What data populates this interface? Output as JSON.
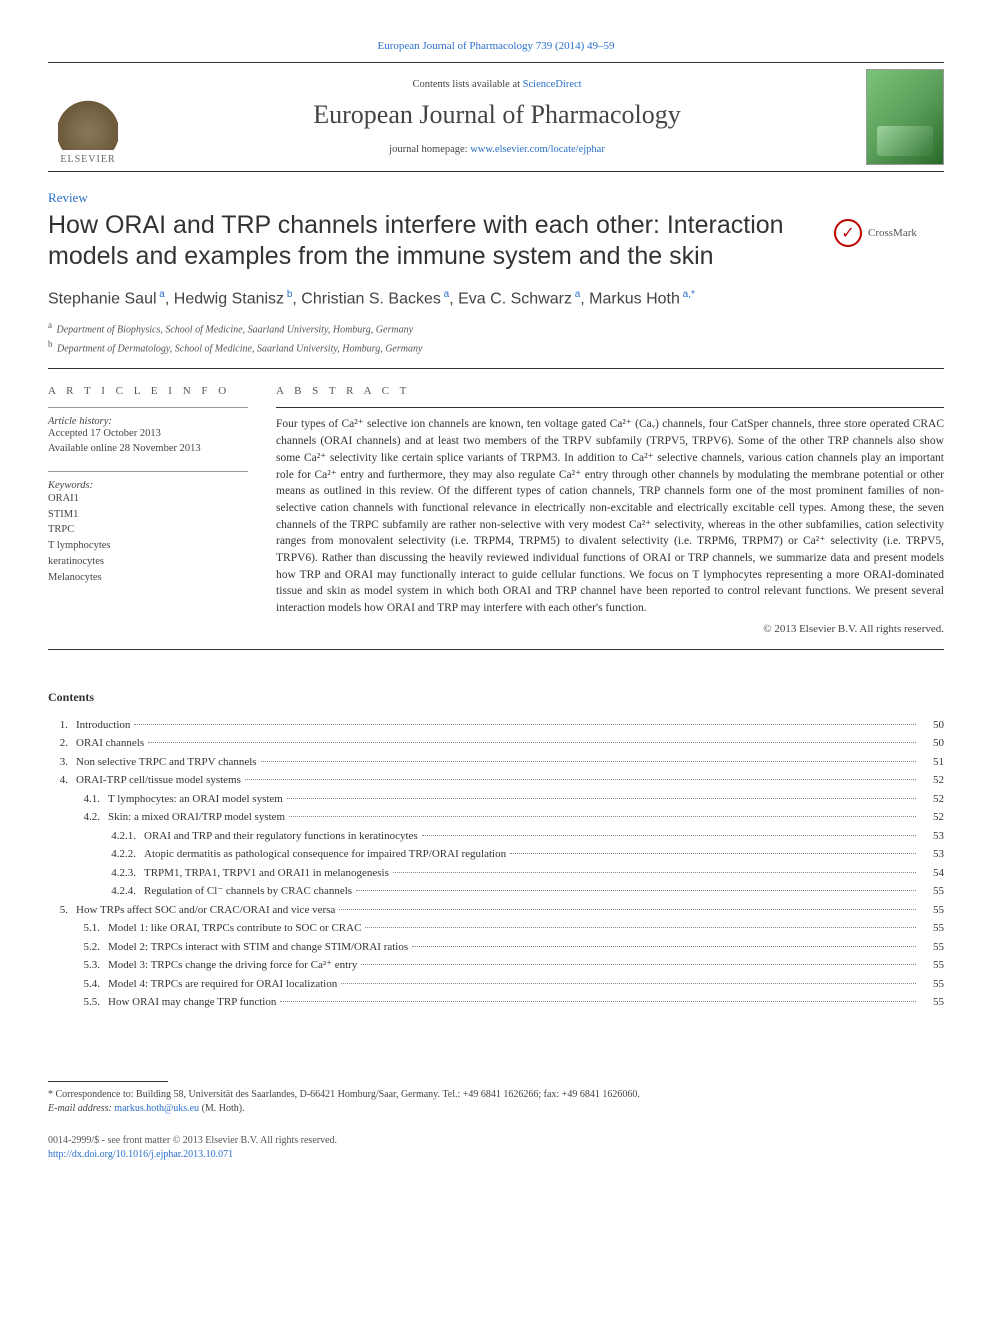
{
  "journal_header_link": "European Journal of Pharmacology 739 (2014) 49–59",
  "header": {
    "contents_prefix": "Contents lists available at ",
    "contents_link": "ScienceDirect",
    "journal_name": "European Journal of Pharmacology",
    "homepage_prefix": "journal homepage: ",
    "homepage_link": "www.elsevier.com/locate/ejphar",
    "publisher": "ELSEVIER"
  },
  "article_type": "Review",
  "title": "How ORAI and TRP channels interfere with each other: Interaction models and examples from the immune system and the skin",
  "crossmark": "CrossMark",
  "authors_html": "Stephanie Saul<sup> a</sup>, Hedwig Stanisz<sup> b</sup>, Christian S. Backes<sup> a</sup>, Eva C. Schwarz<sup> a</sup>, Markus Hoth<sup> a,*</sup>",
  "affiliations": [
    {
      "sup": "a",
      "text": "Department of Biophysics, School of Medicine, Saarland University, Homburg, Germany"
    },
    {
      "sup": "b",
      "text": "Department of Dermatology, School of Medicine, Saarland University, Homburg, Germany"
    }
  ],
  "article_info": {
    "section_label": "A R T I C L E  I N F O",
    "history_label": "Article history:",
    "history_lines": "Accepted 17 October 2013\nAvailable online 28 November 2013",
    "keywords_label": "Keywords:",
    "keywords": [
      "ORAI1",
      "STIM1",
      "TRPC",
      "T lymphocytes",
      "keratinocytes",
      "Melanocytes"
    ]
  },
  "abstract": {
    "section_label": "A B S T R A C T",
    "text": "Four types of Ca²⁺ selective ion channels are known, ten voltage gated Ca²⁺ (Caᵥ) channels, four CatSper channels, three store operated CRAC channels (ORAI channels) and at least two members of the TRPV subfamily (TRPV5, TRPV6). Some of the other TRP channels also show some Ca²⁺ selectivity like certain splice variants of TRPM3. In addition to Ca²⁺ selective channels, various cation channels play an important role for Ca²⁺ entry and furthermore, they may also regulate Ca²⁺ entry through other channels by modulating the membrane potential or other means as outlined in this review. Of the different types of cation channels, TRP channels form one of the most prominent families of non-selective cation channels with functional relevance in electrically non-excitable and electrically excitable cell types. Among these, the seven channels of the TRPC subfamily are rather non-selective with very modest Ca²⁺ selectivity, whereas in the other subfamilies, cation selectivity ranges from monovalent selectivity (i.e. TRPM4, TRPM5) to divalent selectivity (i.e. TRPM6, TRPM7) or Ca²⁺ selectivity (i.e. TRPV5, TRPV6). Rather than discussing the heavily reviewed individual functions of ORAI or TRP channels, we summarize data and present models how TRP and ORAI may functionally interact to guide cellular functions. We focus on T lymphocytes representing a more ORAI-dominated tissue and skin as model system in which both ORAI and TRP channel have been reported to control relevant functions. We present several interaction models how ORAI and TRP may interfere with each other's function.",
    "copyright": "© 2013 Elsevier B.V. All rights reserved."
  },
  "contents_heading": "Contents",
  "toc": [
    {
      "num": "1.",
      "title": "Introduction",
      "page": "50",
      "indent": 0
    },
    {
      "num": "2.",
      "title": "ORAI channels",
      "page": "50",
      "indent": 0
    },
    {
      "num": "3.",
      "title": "Non selective TRPC and TRPV channels",
      "page": "51",
      "indent": 0
    },
    {
      "num": "4.",
      "title": "ORAI-TRP cell/tissue model systems",
      "page": "52",
      "indent": 0
    },
    {
      "num": "4.1.",
      "title": "T lymphocytes: an ORAI model system",
      "page": "52",
      "indent": 1
    },
    {
      "num": "4.2.",
      "title": "Skin: a mixed ORAI/TRP model system",
      "page": "52",
      "indent": 1
    },
    {
      "num": "4.2.1.",
      "title": "ORAI and TRP and their regulatory functions in keratinocytes",
      "page": "53",
      "indent": 2
    },
    {
      "num": "4.2.2.",
      "title": "Atopic dermatitis as pathological consequence for impaired TRP/ORAI regulation",
      "page": "53",
      "indent": 2
    },
    {
      "num": "4.2.3.",
      "title": "TRPM1, TRPA1, TRPV1 and ORAI1 in melanogenesis",
      "page": "54",
      "indent": 2
    },
    {
      "num": "4.2.4.",
      "title": "Regulation of Cl⁻ channels by CRAC channels",
      "page": "55",
      "indent": 2
    },
    {
      "num": "5.",
      "title": "How TRPs affect SOC and/or CRAC/ORAI and vice versa",
      "page": "55",
      "indent": 0
    },
    {
      "num": "5.1.",
      "title": "Model 1: like ORAI, TRPCs contribute to SOC or CRAC",
      "page": "55",
      "indent": 1
    },
    {
      "num": "5.2.",
      "title": "Model 2: TRPCs interact with STIM and change STIM/ORAI ratios",
      "page": "55",
      "indent": 1
    },
    {
      "num": "5.3.",
      "title": "Model 3: TRPCs change the driving force for Ca²⁺ entry",
      "page": "55",
      "indent": 1
    },
    {
      "num": "5.4.",
      "title": "Model 4: TRPCs are required for ORAI localization",
      "page": "55",
      "indent": 1
    },
    {
      "num": "5.5.",
      "title": "How ORAI may change TRP function",
      "page": "55",
      "indent": 1
    }
  ],
  "footnote": {
    "correspondence": "* Correspondence to: Building 58, Universität des Saarlandes, D-66421 Homburg/Saar, Germany. Tel.: +49 6841 1626266; fax: +49 6841 1626060.",
    "email_label": "E-mail address: ",
    "email": "markus.hoth@uks.eu",
    "email_suffix": " (M. Hoth)."
  },
  "footer": {
    "issn_line": "0014-2999/$ - see front matter © 2013 Elsevier B.V. All rights reserved.",
    "doi": "http://dx.doi.org/10.1016/j.ejphar.2013.10.071"
  },
  "colors": {
    "link": "#2a6fc9",
    "text": "#2a2a2a",
    "border": "#333333"
  }
}
